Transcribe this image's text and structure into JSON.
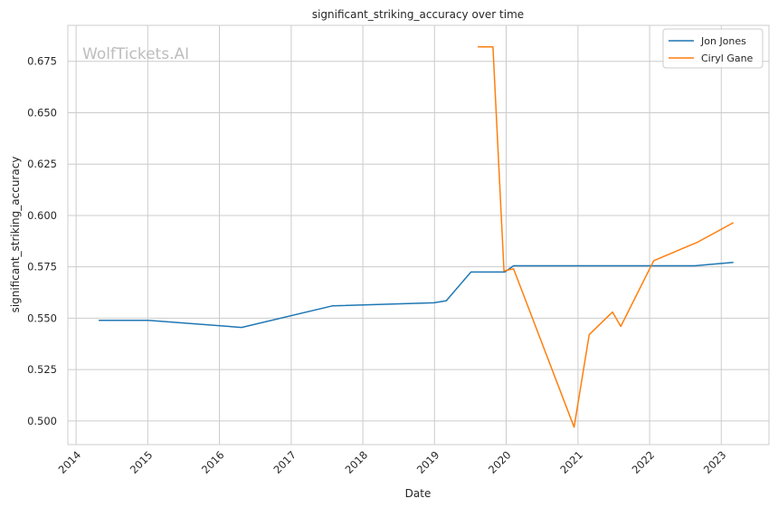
{
  "chart_data": {
    "type": "line",
    "title": "significant_striking_accuracy over time",
    "xlabel": "Date",
    "ylabel": "significant_striking_accuracy",
    "watermark": "WolfTickets.AI",
    "x_ticks": [
      "2014",
      "2015",
      "2016",
      "2017",
      "2018",
      "2019",
      "2020",
      "2021",
      "2022",
      "2023"
    ],
    "y_ticks": [
      "0.500",
      "0.525",
      "0.550",
      "0.575",
      "0.600",
      "0.625",
      "0.650",
      "0.675"
    ],
    "xlim": [
      "2013-11-20",
      "2023-09-01"
    ],
    "ylim": [
      0.4885,
      0.6925
    ],
    "grid": true,
    "legend_position": "top-right",
    "series": [
      {
        "name": "Jon Jones",
        "color": "#1f77b4",
        "points": [
          [
            "2014-04-26",
            0.549
          ],
          [
            "2015-01-03",
            0.549
          ],
          [
            "2016-04-23",
            0.5455
          ],
          [
            "2017-07-29",
            0.556
          ],
          [
            "2018-12-29",
            0.5575
          ],
          [
            "2019-03-02",
            0.5585
          ],
          [
            "2019-07-06",
            0.5725
          ],
          [
            "2019-12-25",
            0.5725
          ],
          [
            "2020-02-08",
            0.5755
          ],
          [
            "2022-08-20",
            0.5755
          ],
          [
            "2023-03-04",
            0.5772
          ]
        ]
      },
      {
        "name": "Ciryl Gane",
        "color": "#ff7f0e",
        "points": [
          [
            "2019-08-10",
            0.682
          ],
          [
            "2019-10-26",
            0.682
          ],
          [
            "2019-12-21",
            0.573
          ],
          [
            "2020-02-08",
            0.574
          ],
          [
            "2020-12-12",
            0.497
          ],
          [
            "2021-02-27",
            0.542
          ],
          [
            "2021-06-26",
            0.553
          ],
          [
            "2021-08-07",
            0.546
          ],
          [
            "2022-01-22",
            0.578
          ],
          [
            "2022-09-03",
            0.587
          ],
          [
            "2023-03-04",
            0.5965
          ]
        ]
      }
    ]
  }
}
